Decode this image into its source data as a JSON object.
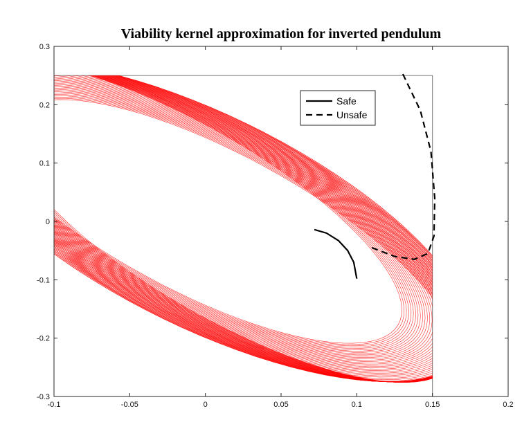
{
  "chart_data": {
    "type": "line",
    "title": "Viability kernel approximation for inverted pendulum",
    "xlabel": "",
    "ylabel": "",
    "xlim": [
      -0.1,
      0.2
    ],
    "ylim": [
      -0.3,
      0.3
    ],
    "x_ticks": [
      -0.1,
      -0.05,
      0,
      0.05,
      0.1,
      0.15,
      0.2
    ],
    "x_tick_labels": [
      "-0.1",
      "-0.05",
      "0",
      "0.05",
      "0.1",
      "0.15",
      "0.2"
    ],
    "y_ticks": [
      -0.3,
      -0.2,
      -0.1,
      0,
      0.1,
      0.2,
      0.3
    ],
    "y_tick_labels": [
      "-0.3",
      "-0.2",
      "-0.1",
      "0",
      "0.1",
      "0.2",
      "0.3"
    ],
    "grid": false,
    "legend_position": "top-right",
    "constraint_box": {
      "x": [
        -0.1,
        0.15
      ],
      "y": [
        -0.3,
        0.25
      ]
    },
    "ellipse_family": {
      "color": "#ff0000",
      "count": 60,
      "center": [
        0,
        0
      ],
      "semi_axis_major": 0.305,
      "semi_axis_minor": 0.085,
      "major_axis_angle_deg": 118,
      "center_shift_along_major": [
        -0.038,
        0.038
      ],
      "clip_to_box": true
    },
    "series": [
      {
        "name": "Safe",
        "style": "solid",
        "color": "#000000",
        "x": [
          0.072,
          0.08,
          0.088,
          0.094,
          0.098,
          0.1
        ],
        "y": [
          -0.014,
          -0.02,
          -0.033,
          -0.05,
          -0.07,
          -0.098
        ]
      },
      {
        "name": "Unsafe",
        "style": "dashed",
        "color": "#000000",
        "x": [
          0.11,
          0.125,
          0.138,
          0.147,
          0.151,
          0.1515,
          0.149,
          0.142,
          0.13
        ],
        "y": [
          -0.045,
          -0.06,
          -0.065,
          -0.055,
          -0.025,
          0.04,
          0.12,
          0.19,
          0.255
        ]
      }
    ]
  }
}
